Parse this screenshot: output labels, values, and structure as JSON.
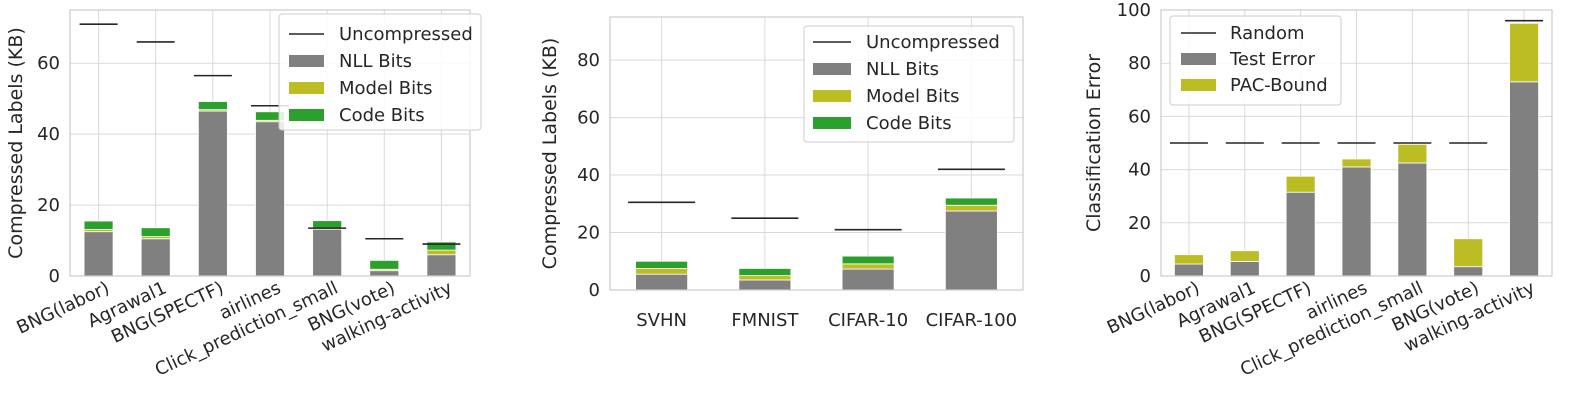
{
  "colors": {
    "nll": "#808080",
    "model": "#bcbd22",
    "code": "#2ca02c",
    "error": "#808080",
    "pac": "#bcbd22",
    "line": "#262626",
    "grid": "#d9d9d9",
    "frame": "#cccccc",
    "background": "#ffffff"
  },
  "chart_data": [
    {
      "type": "bar",
      "stacked": true,
      "ylabel": "Compressed Labels (KB)",
      "xlabel": "",
      "ylim": [
        0,
        75
      ],
      "yticks": [
        0,
        20,
        40,
        60
      ],
      "grid": true,
      "legend_position": "top-right",
      "tick_rotation": "angled",
      "categories": [
        "BNG(labor)",
        "Agrawal1",
        "BNG(SPECTF)",
        "airlines",
        "Click_prediction_small",
        "BNG(vote)",
        "walking-activity"
      ],
      "reference_line": {
        "name": "Uncompressed",
        "values": [
          71,
          66,
          56.5,
          48,
          13.5,
          10.5,
          9
        ]
      },
      "series": [
        {
          "name": "NLL Bits",
          "color_key": "nll",
          "values": [
            12.5,
            10.5,
            46.5,
            43.5,
            13.2,
            1.5,
            6
          ]
        },
        {
          "name": "Model Bits",
          "color_key": "model",
          "values": [
            0.6,
            0.6,
            0.4,
            0.4,
            0.3,
            0.4,
            1.3
          ]
        },
        {
          "name": "Code Bits",
          "color_key": "code",
          "values": [
            2.4,
            2.5,
            2.3,
            2.4,
            2.1,
            2.5,
            2.3
          ]
        }
      ]
    },
    {
      "type": "bar",
      "stacked": true,
      "ylabel": "Compressed Labels (KB)",
      "xlabel": "",
      "ylim": [
        0,
        95
      ],
      "yticks": [
        0,
        20,
        40,
        60,
        80
      ],
      "grid": true,
      "legend_position": "top-right",
      "tick_rotation": "none",
      "categories": [
        "SVHN",
        "FMNIST",
        "CIFAR-10",
        "CIFAR-100"
      ],
      "reference_line": {
        "name": "Uncompressed",
        "values": [
          30.5,
          25,
          21,
          42
        ]
      },
      "series": [
        {
          "name": "NLL Bits",
          "color_key": "nll",
          "values": [
            5.5,
            3.5,
            7.3,
            27.5
          ]
        },
        {
          "name": "Model Bits",
          "color_key": "model",
          "values": [
            2.0,
            1.5,
            1.8,
            2.0
          ]
        },
        {
          "name": "Code Bits",
          "color_key": "code",
          "values": [
            2.5,
            2.5,
            2.7,
            2.5
          ]
        }
      ]
    },
    {
      "type": "bar",
      "stacked": true,
      "ylabel": "Classification Error",
      "xlabel": "",
      "ylim": [
        0,
        100
      ],
      "yticks": [
        0,
        20,
        40,
        60,
        80,
        100
      ],
      "grid": true,
      "legend_position": "top-left",
      "tick_rotation": "angled",
      "categories": [
        "BNG(labor)",
        "Agrawal1",
        "BNG(SPECTF)",
        "airlines",
        "Click_prediction_small",
        "BNG(vote)",
        "walking-activity"
      ],
      "reference_line": {
        "name": "Random",
        "values": [
          50,
          50,
          50,
          50,
          50,
          50,
          96
        ]
      },
      "series": [
        {
          "name": "Test Error",
          "color_key": "error",
          "values": [
            4.5,
            5.5,
            31.5,
            41,
            42.5,
            3.5,
            73
          ]
        },
        {
          "name": "PAC-Bound",
          "color_key": "pac",
          "values": [
            3.5,
            4,
            6,
            3,
            7,
            10.5,
            22
          ]
        }
      ]
    }
  ]
}
